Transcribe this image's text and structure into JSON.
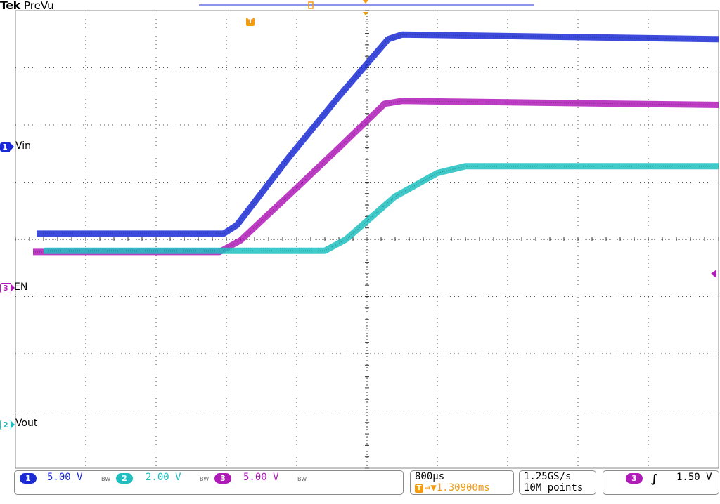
{
  "header": {
    "brand": "Tek",
    "mode": "PreVu"
  },
  "channels": [
    {
      "id": "1",
      "name": "Vin",
      "color": "#1a2bd6"
    },
    {
      "id": "3",
      "name": "EN",
      "color": "#b01ab8"
    },
    {
      "id": "2",
      "name": "Vout",
      "color": "#1fbfbf"
    }
  ],
  "status": {
    "ch1": {
      "num": "1",
      "scale": "5.00 V",
      "bw": "BW"
    },
    "ch2": {
      "num": "2",
      "scale": "2.00 V",
      "bw": "BW"
    },
    "ch3": {
      "num": "3",
      "scale": "5.00 V",
      "bw": "BW"
    },
    "timebase": "800µs",
    "trigger_pos": "→▼1.30900ms",
    "sample_rate": "1.25GS/s",
    "record_length": "10M points",
    "trigger_source": "3",
    "trigger_slope": "∫",
    "trigger_level": "1.50 V"
  },
  "colors": {
    "ch1": "#1a2bd6",
    "ch2": "#1fbfbf",
    "ch3": "#b01ab8",
    "trigger": "#f39c12",
    "grid": "#555555"
  },
  "chart_data": {
    "type": "line",
    "x_divisions": 10,
    "y_divisions": 8,
    "x_unit_per_div": "800µs",
    "series": [
      {
        "name": "Vin",
        "channel": "1",
        "points": [
          [
            0.3,
            0.1
          ],
          [
            2.96,
            0.1
          ],
          [
            3.15,
            0.25
          ],
          [
            3.9,
            1.45
          ],
          [
            4.6,
            2.5
          ],
          [
            5.3,
            3.5
          ],
          [
            5.5,
            3.58
          ],
          [
            10,
            3.5
          ]
        ]
      },
      {
        "name": "EN",
        "channel": "3",
        "points": [
          [
            0.25,
            -0.22
          ],
          [
            2.9,
            -0.22
          ],
          [
            3.2,
            -0.02
          ],
          [
            4.0,
            0.9
          ],
          [
            4.6,
            1.6
          ],
          [
            5.25,
            2.37
          ],
          [
            5.5,
            2.42
          ],
          [
            10,
            2.35
          ]
        ]
      },
      {
        "name": "Vout",
        "channel": "2",
        "points": [
          [
            0.4,
            -0.2
          ],
          [
            4.4,
            -0.2
          ],
          [
            4.7,
            0.0
          ],
          [
            5.4,
            0.75
          ],
          [
            6.0,
            1.16
          ],
          [
            6.4,
            1.28
          ],
          [
            10,
            1.28
          ]
        ]
      }
    ]
  }
}
